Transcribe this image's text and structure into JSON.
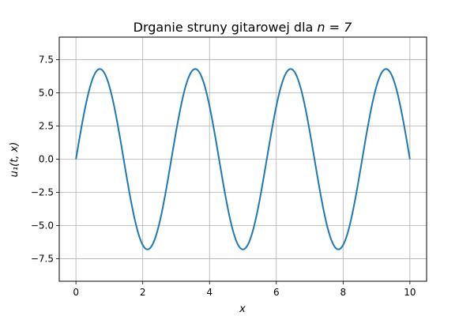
{
  "chart_data": {
    "type": "line",
    "title": "Drganie struny gitarowej dla ",
    "title_math": "n = 7",
    "xlabel": "x",
    "ylabel": "u₁(t, x)",
    "xlim": [
      -0.5,
      10.5
    ],
    "ylim": [
      -9.2,
      9.2
    ],
    "xticks": [
      0,
      2,
      4,
      6,
      8,
      10
    ],
    "xtick_labels": [
      "0",
      "2",
      "4",
      "6",
      "8",
      "10"
    ],
    "yticks": [
      -7.5,
      -5.0,
      -2.5,
      0.0,
      2.5,
      5.0,
      7.5
    ],
    "ytick_labels": [
      "−7.5",
      "−5.0",
      "−2.5",
      "0.0",
      "2.5",
      "5.0",
      "7.5"
    ],
    "grid": true,
    "series": [
      {
        "color": "#1f77b4",
        "amplitude": 6.8,
        "x_range": [
          0,
          10
        ],
        "n": 7,
        "x": [
          0,
          0.25,
          0.5,
          0.714,
          1.0,
          1.25,
          1.5,
          1.75,
          2.0,
          2.143,
          2.5,
          2.75,
          3.0,
          3.25,
          3.571,
          3.75,
          4.0,
          4.25,
          4.5,
          4.75,
          5.0,
          5.25,
          5.5,
          5.75,
          6.0,
          6.25,
          6.429,
          6.75,
          7.0,
          7.25,
          7.5,
          7.857,
          8.0,
          8.25,
          8.5,
          8.75,
          9.0,
          9.286,
          9.5,
          9.75,
          10.0
        ],
        "y": [
          0,
          3.5,
          6.0,
          6.8,
          6.1,
          3.6,
          0.3,
          -3.2,
          -6.2,
          -6.8,
          -5.2,
          -2.3,
          1.0,
          4.3,
          6.8,
          6.3,
          4.4,
          1.1,
          -2.4,
          -5.2,
          -6.8,
          -5.4,
          -2.8,
          0.7,
          3.9,
          6.2,
          6.8,
          5.7,
          3.1,
          -0.3,
          -3.6,
          -6.8,
          -6.6,
          -4.8,
          -1.8,
          1.5,
          4.7,
          6.8,
          6.0,
          3.5,
          0
        ]
      }
    ]
  }
}
